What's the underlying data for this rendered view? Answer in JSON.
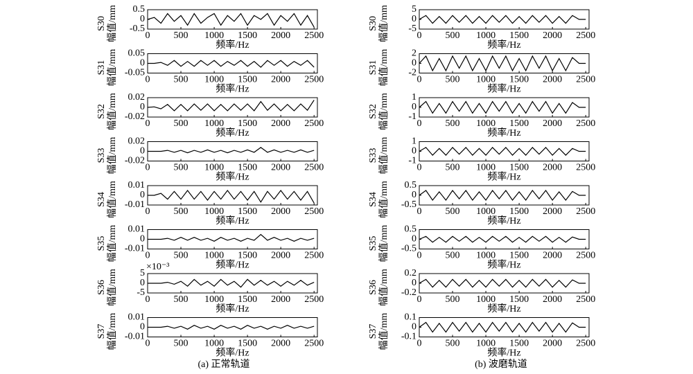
{
  "captions": [
    "(a) 正常轨道",
    "(b) 波磨轨道"
  ],
  "chart_data": [
    {
      "type": "line",
      "label": "S30",
      "ylabel": "幅值/mm",
      "xlabel": "频率/Hz",
      "xlim": [
        0,
        2550
      ],
      "xticks": [
        0,
        500,
        1000,
        1500,
        2000,
        2500
      ],
      "ylim": [
        -0.5,
        0.5
      ],
      "yticks": [
        -0.5,
        0,
        0.5
      ],
      "color": "#000000",
      "x": [
        0,
        100,
        200,
        300,
        400,
        500,
        600,
        700,
        800,
        900,
        1000,
        1100,
        1200,
        1300,
        1400,
        1500,
        1600,
        1700,
        1800,
        1900,
        2000,
        2100,
        2200,
        2300,
        2400,
        2500
      ],
      "values": [
        0,
        0.1,
        -0.2,
        0.3,
        -0.1,
        0.2,
        -0.3,
        0.3,
        -0.2,
        0.1,
        0.3,
        -0.3,
        0.2,
        -0.1,
        0.3,
        -0.3,
        0.2,
        0,
        0.3,
        -0.3,
        0.2,
        -0.1,
        0.3,
        -0.3,
        0.2,
        -0.4
      ]
    },
    {
      "type": "line",
      "label": "S31",
      "ylabel": "幅值/mm",
      "xlabel": "频率/Hz",
      "xlim": [
        0,
        2550
      ],
      "xticks": [
        0,
        500,
        1000,
        1500,
        2000,
        2500
      ],
      "ylim": [
        -0.05,
        0.05
      ],
      "yticks": [
        -0.05,
        0,
        0.05
      ],
      "color": "#000000",
      "x": [
        0,
        100,
        200,
        300,
        400,
        500,
        600,
        700,
        800,
        900,
        1000,
        1100,
        1200,
        1300,
        1400,
        1500,
        1600,
        1700,
        1800,
        1900,
        2000,
        2100,
        2200,
        2300,
        2400,
        2500
      ],
      "values": [
        0,
        0,
        0.005,
        -0.01,
        0.015,
        -0.015,
        0.01,
        -0.015,
        0.015,
        -0.01,
        0.015,
        -0.015,
        0.01,
        -0.01,
        0.015,
        -0.015,
        0.01,
        -0.02,
        0.015,
        -0.01,
        0.015,
        -0.015,
        0.01,
        -0.01,
        0.015,
        -0.02
      ]
    },
    {
      "type": "line",
      "label": "S32",
      "ylabel": "幅值/mm",
      "xlabel": "频率/Hz",
      "xlim": [
        0,
        2550
      ],
      "xticks": [
        0,
        500,
        1000,
        1500,
        2000,
        2500
      ],
      "ylim": [
        -0.02,
        0.02
      ],
      "yticks": [
        -0.02,
        0,
        0.02
      ],
      "color": "#000000",
      "x": [
        0,
        100,
        200,
        300,
        400,
        500,
        600,
        700,
        800,
        900,
        1000,
        1100,
        1200,
        1300,
        1400,
        1500,
        1600,
        1700,
        1800,
        1900,
        2000,
        2100,
        2200,
        2300,
        2400,
        2500
      ],
      "values": [
        0,
        0.001,
        -0.003,
        0.006,
        -0.007,
        0.006,
        -0.007,
        0.007,
        -0.006,
        0.007,
        -0.007,
        0.006,
        -0.007,
        0.007,
        -0.006,
        0.007,
        -0.007,
        0.012,
        -0.006,
        0.007,
        -0.007,
        0.006,
        -0.007,
        0.007,
        -0.006,
        0.015
      ]
    },
    {
      "type": "line",
      "label": "S33",
      "ylabel": "幅值/mm",
      "xlabel": "频率/Hz",
      "xlim": [
        0,
        2550
      ],
      "xticks": [
        0,
        500,
        1000,
        1500,
        2000,
        2500
      ],
      "ylim": [
        -0.02,
        0.02
      ],
      "yticks": [
        -0.02,
        0,
        0.02
      ],
      "color": "#000000",
      "x": [
        0,
        100,
        200,
        300,
        400,
        500,
        600,
        700,
        800,
        900,
        1000,
        1100,
        1200,
        1300,
        1400,
        1500,
        1600,
        1700,
        1800,
        1900,
        2000,
        2100,
        2200,
        2300,
        2400,
        2500
      ],
      "values": [
        0,
        0,
        0,
        0.002,
        -0.002,
        0.002,
        -0.003,
        0.002,
        -0.002,
        0.003,
        -0.002,
        0.002,
        -0.003,
        0.002,
        -0.002,
        0.003,
        -0.002,
        0.008,
        -0.002,
        0.003,
        -0.002,
        0.002,
        -0.002,
        0.003,
        -0.002,
        0.002
      ]
    },
    {
      "type": "line",
      "label": "S34",
      "ylabel": "幅值/mm",
      "xlabel": "频率/Hz",
      "xlim": [
        0,
        2550
      ],
      "xticks": [
        0,
        500,
        1000,
        1500,
        2000,
        2500
      ],
      "ylim": [
        -0.01,
        0.01
      ],
      "yticks": [
        -0.01,
        0,
        0.01
      ],
      "color": "#000000",
      "x": [
        0,
        100,
        200,
        300,
        400,
        500,
        600,
        700,
        800,
        900,
        1000,
        1100,
        1200,
        1300,
        1400,
        1500,
        1600,
        1700,
        1800,
        1900,
        2000,
        2100,
        2200,
        2300,
        2400,
        2500
      ],
      "values": [
        0,
        0,
        0.002,
        -0.004,
        0.004,
        -0.004,
        0.005,
        -0.004,
        0.004,
        -0.005,
        0.004,
        -0.004,
        0.005,
        -0.004,
        0.004,
        -0.005,
        0.004,
        -0.007,
        0.004,
        -0.004,
        0.005,
        -0.004,
        0.004,
        -0.005,
        0.004,
        -0.008
      ]
    },
    {
      "type": "line",
      "label": "S35",
      "ylabel": "幅值/mm",
      "xlabel": "频率/Hz",
      "xlim": [
        0,
        2550
      ],
      "xticks": [
        0,
        500,
        1000,
        1500,
        2000,
        2500
      ],
      "ylim": [
        -0.01,
        0.01
      ],
      "yticks": [
        -0.01,
        0,
        0.01
      ],
      "color": "#000000",
      "x": [
        0,
        100,
        200,
        300,
        400,
        500,
        600,
        700,
        800,
        900,
        1000,
        1100,
        1200,
        1300,
        1400,
        1500,
        1600,
        1700,
        1800,
        1900,
        2000,
        2100,
        2200,
        2300,
        2400,
        2500
      ],
      "values": [
        0,
        0,
        0,
        0.001,
        -0.001,
        0.002,
        -0.001,
        0.002,
        -0.001,
        0.001,
        -0.002,
        0.002,
        -0.001,
        0.001,
        -0.002,
        0.001,
        -0.001,
        0.005,
        -0.001,
        0.002,
        -0.001,
        0.001,
        -0.002,
        0.001,
        -0.001,
        0.001
      ]
    },
    {
      "type": "line",
      "label": "S36",
      "ylabel": "幅值/mm",
      "xlabel": "频率/Hz",
      "y_multiplier": "×10⁻³",
      "xlim": [
        0,
        2550
      ],
      "xticks": [
        0,
        500,
        1000,
        1500,
        2000,
        2500
      ],
      "ylim": [
        -5,
        5
      ],
      "yticks": [
        -5,
        0,
        5
      ],
      "color": "#000000",
      "x": [
        0,
        100,
        200,
        300,
        400,
        500,
        600,
        700,
        800,
        900,
        1000,
        1100,
        1200,
        1300,
        1400,
        1500,
        1600,
        1700,
        1800,
        1900,
        2000,
        2100,
        2200,
        2300,
        2400,
        2500
      ],
      "values": [
        0,
        0,
        0,
        0.5,
        -0.5,
        1,
        -1.5,
        2,
        -1,
        1,
        -1.5,
        2,
        -1,
        1,
        -2,
        2,
        -1,
        1.5,
        -1,
        1,
        -1.5,
        1,
        -1,
        1.5,
        -1,
        0.5
      ]
    },
    {
      "type": "line",
      "label": "S37",
      "ylabel": "幅值/mm",
      "xlabel": "频率/Hz",
      "xlim": [
        0,
        2550
      ],
      "xticks": [
        0,
        500,
        1000,
        1500,
        2000,
        2500
      ],
      "ylim": [
        -0.01,
        0.01
      ],
      "yticks": [
        -0.01,
        0,
        0.01
      ],
      "color": "#000000",
      "x": [
        0,
        100,
        200,
        300,
        400,
        500,
        600,
        700,
        800,
        900,
        1000,
        1100,
        1200,
        1300,
        1400,
        1500,
        1600,
        1700,
        1800,
        1900,
        2000,
        2100,
        2200,
        2300,
        2400,
        2500
      ],
      "values": [
        0,
        0,
        0,
        0.001,
        -0.001,
        0.001,
        -0.002,
        0.002,
        -0.001,
        0.001,
        -0.002,
        0.002,
        -0.001,
        0.001,
        -0.002,
        0.002,
        -0.001,
        0.001,
        -0.002,
        0.001,
        -0.001,
        0.002,
        -0.001,
        0.001,
        -0.001,
        0.001
      ]
    },
    {
      "type": "line",
      "label": "S30",
      "ylabel": "幅值/mm",
      "xlabel": "频率/Hz",
      "xlim": [
        0,
        2550
      ],
      "xticks": [
        0,
        500,
        1000,
        1500,
        2000,
        2500
      ],
      "ylim": [
        -5,
        5
      ],
      "yticks": [
        -5,
        0,
        5
      ],
      "color": "#000000",
      "x": [
        0,
        100,
        200,
        300,
        400,
        500,
        600,
        700,
        800,
        900,
        1000,
        1100,
        1200,
        1300,
        1400,
        1500,
        1600,
        1700,
        1800,
        1900,
        2000,
        2100,
        2200,
        2300,
        2400,
        2500
      ],
      "values": [
        0,
        2,
        -2,
        1.5,
        -2,
        2,
        -1.5,
        2,
        -2,
        1.5,
        -2,
        2,
        -1.5,
        2,
        -2,
        1.5,
        -2,
        2,
        -1.5,
        2,
        -2,
        1.5,
        -2,
        2,
        0,
        0
      ]
    },
    {
      "type": "line",
      "label": "S31",
      "ylabel": "幅值/mm",
      "xlabel": "频率/Hz",
      "xlim": [
        0,
        2550
      ],
      "xticks": [
        0,
        500,
        1000,
        1500,
        2000,
        2500
      ],
      "ylim": [
        -2,
        2
      ],
      "yticks": [
        -2,
        0,
        2
      ],
      "color": "#000000",
      "x": [
        0,
        100,
        200,
        300,
        400,
        500,
        600,
        700,
        800,
        900,
        1000,
        1100,
        1200,
        1300,
        1400,
        1500,
        1600,
        1700,
        1800,
        1900,
        2000,
        2100,
        2200,
        2300,
        2400,
        2500
      ],
      "values": [
        0,
        1.5,
        -1.5,
        1,
        -1.5,
        1.5,
        -1,
        1.5,
        -1.5,
        1,
        -1.5,
        1.5,
        -1,
        1.5,
        -1.5,
        1,
        -1.5,
        1.5,
        -1,
        1.5,
        -1.5,
        1,
        -1.5,
        1.2,
        0,
        0
      ]
    },
    {
      "type": "line",
      "label": "S32",
      "ylabel": "幅值/mm",
      "xlabel": "频率/Hz",
      "xlim": [
        0,
        2550
      ],
      "xticks": [
        0,
        500,
        1000,
        1500,
        2000,
        2500
      ],
      "ylim": [
        -1,
        1
      ],
      "yticks": [
        -1,
        0,
        1
      ],
      "color": "#000000",
      "x": [
        0,
        100,
        200,
        300,
        400,
        500,
        600,
        700,
        800,
        900,
        1000,
        1100,
        1200,
        1300,
        1400,
        1500,
        1600,
        1700,
        1800,
        1900,
        2000,
        2100,
        2200,
        2300,
        2400,
        2500
      ],
      "values": [
        0,
        0.6,
        -0.6,
        0.4,
        -0.6,
        0.6,
        -0.4,
        0.6,
        -0.6,
        0.4,
        -0.6,
        0.6,
        -0.4,
        0.6,
        -0.6,
        0.4,
        -0.6,
        0.6,
        -0.4,
        0.6,
        -0.6,
        0.4,
        -0.6,
        0.5,
        0,
        0
      ]
    },
    {
      "type": "line",
      "label": "S33",
      "ylabel": "幅值/mm",
      "xlabel": "频率/Hz",
      "xlim": [
        0,
        2550
      ],
      "xticks": [
        0,
        500,
        1000,
        1500,
        2000,
        2500
      ],
      "ylim": [
        -1,
        1
      ],
      "yticks": [
        -1,
        0,
        1
      ],
      "color": "#000000",
      "x": [
        0,
        100,
        200,
        300,
        400,
        500,
        600,
        700,
        800,
        900,
        1000,
        1100,
        1200,
        1300,
        1400,
        1500,
        1600,
        1700,
        1800,
        1900,
        2000,
        2100,
        2200,
        2300,
        2400,
        2500
      ],
      "values": [
        0,
        0.4,
        -0.4,
        0.3,
        -0.4,
        0.4,
        -0.3,
        0.4,
        -0.4,
        0.3,
        -0.4,
        0.4,
        -0.3,
        0.4,
        -0.4,
        0.3,
        -0.4,
        0.4,
        -0.3,
        0.4,
        -0.4,
        0.3,
        -0.4,
        0.3,
        0,
        0
      ]
    },
    {
      "type": "line",
      "label": "S34",
      "ylabel": "幅值/mm",
      "xlabel": "频率/Hz",
      "xlim": [
        0,
        2550
      ],
      "xticks": [
        0,
        500,
        1000,
        1500,
        2000,
        2500
      ],
      "ylim": [
        -0.5,
        0.5
      ],
      "yticks": [
        -0.5,
        0,
        0.5
      ],
      "color": "#000000",
      "x": [
        0,
        100,
        200,
        300,
        400,
        500,
        600,
        700,
        800,
        900,
        1000,
        1100,
        1200,
        1300,
        1400,
        1500,
        1600,
        1700,
        1800,
        1900,
        2000,
        2100,
        2200,
        2300,
        2400,
        2500
      ],
      "values": [
        0,
        0.25,
        -0.25,
        0.18,
        -0.25,
        0.25,
        -0.18,
        0.25,
        -0.25,
        0.18,
        -0.25,
        0.25,
        -0.18,
        0.25,
        -0.25,
        0.18,
        -0.25,
        0.25,
        -0.18,
        0.25,
        -0.25,
        0.18,
        -0.25,
        0.2,
        0,
        0
      ]
    },
    {
      "type": "line",
      "label": "S35",
      "ylabel": "幅值/mm",
      "xlabel": "频率/Hz",
      "xlim": [
        0,
        2550
      ],
      "xticks": [
        0,
        500,
        1000,
        1500,
        2000,
        2500
      ],
      "ylim": [
        -0.5,
        0.5
      ],
      "yticks": [
        -0.5,
        0,
        0.5
      ],
      "color": "#000000",
      "x": [
        0,
        100,
        200,
        300,
        400,
        500,
        600,
        700,
        800,
        900,
        1000,
        1100,
        1200,
        1300,
        1400,
        1500,
        1600,
        1700,
        1800,
        1900,
        2000,
        2100,
        2200,
        2300,
        2400,
        2500
      ],
      "values": [
        0,
        0.15,
        -0.15,
        0.1,
        -0.15,
        0.15,
        -0.1,
        0.15,
        -0.15,
        0.1,
        -0.15,
        0.15,
        -0.1,
        0.15,
        -0.15,
        0.1,
        -0.15,
        0.15,
        -0.1,
        0.15,
        -0.15,
        0.1,
        -0.15,
        0.12,
        0,
        0
      ]
    },
    {
      "type": "line",
      "label": "S36",
      "ylabel": "幅值/mm",
      "xlabel": "频率/Hz",
      "xlim": [
        0,
        2550
      ],
      "xticks": [
        0,
        500,
        1000,
        1500,
        2000,
        2500
      ],
      "ylim": [
        -0.2,
        0.2
      ],
      "yticks": [
        -0.2,
        0,
        0.2
      ],
      "color": "#000000",
      "x": [
        0,
        100,
        200,
        300,
        400,
        500,
        600,
        700,
        800,
        900,
        1000,
        1100,
        1200,
        1300,
        1400,
        1500,
        1600,
        1700,
        1800,
        1900,
        2000,
        2100,
        2200,
        2300,
        2400,
        2500
      ],
      "values": [
        0,
        0.08,
        -0.08,
        0.06,
        -0.08,
        0.08,
        -0.06,
        0.08,
        -0.08,
        0.06,
        -0.08,
        0.08,
        -0.06,
        0.08,
        -0.08,
        0.06,
        -0.08,
        0.08,
        -0.06,
        0.08,
        -0.08,
        0.06,
        -0.08,
        0.07,
        0,
        0
      ]
    },
    {
      "type": "line",
      "label": "S37",
      "ylabel": "幅值/mm",
      "xlabel": "频率/Hz",
      "xlim": [
        0,
        2550
      ],
      "xticks": [
        0,
        500,
        1000,
        1500,
        2000,
        2500
      ],
      "ylim": [
        -0.1,
        0.1
      ],
      "yticks": [
        -0.1,
        0,
        0.1
      ],
      "color": "#000000",
      "x": [
        0,
        100,
        200,
        300,
        400,
        500,
        600,
        700,
        800,
        900,
        1000,
        1100,
        1200,
        1300,
        1400,
        1500,
        1600,
        1700,
        1800,
        1900,
        2000,
        2100,
        2200,
        2300,
        2400,
        2500
      ],
      "values": [
        0,
        0.05,
        -0.05,
        0.04,
        -0.05,
        0.05,
        -0.04,
        0.05,
        -0.05,
        0.04,
        -0.05,
        0.05,
        -0.04,
        0.05,
        -0.05,
        0.04,
        -0.05,
        0.05,
        -0.04,
        0.05,
        -0.05,
        0.04,
        -0.05,
        0.045,
        0,
        0
      ]
    }
  ]
}
